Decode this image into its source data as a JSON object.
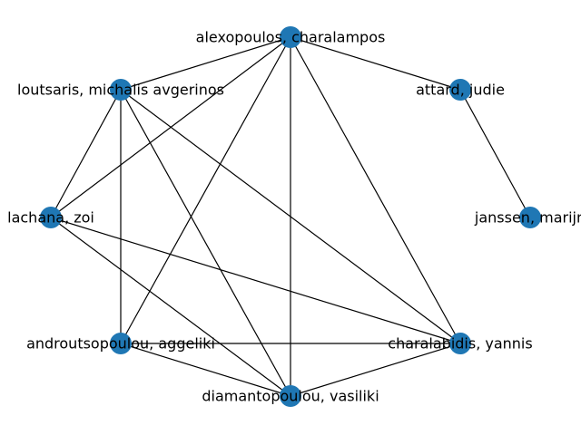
{
  "graph": {
    "node_color": "#1f77b4",
    "edge_color": "#000000",
    "nodes": [
      {
        "id": "alexopoulos",
        "label": "alexopoulos, charalampos"
      },
      {
        "id": "attard",
        "label": "attard, judie"
      },
      {
        "id": "janssen",
        "label": "janssen, marijn"
      },
      {
        "id": "charalabidis",
        "label": "charalabidis, yannis"
      },
      {
        "id": "diamantopoulou",
        "label": "diamantopoulou, vasiliki"
      },
      {
        "id": "androutsopoulou",
        "label": "androutsopoulou, aggeliki"
      },
      {
        "id": "lachana",
        "label": "lachana, zoi"
      },
      {
        "id": "loutsaris",
        "label": "loutsaris, michalis avgerinos"
      }
    ],
    "edges": [
      [
        "alexopoulos",
        "attard"
      ],
      [
        "alexopoulos",
        "loutsaris"
      ],
      [
        "alexopoulos",
        "lachana"
      ],
      [
        "alexopoulos",
        "androutsopoulou"
      ],
      [
        "alexopoulos",
        "diamantopoulou"
      ],
      [
        "alexopoulos",
        "charalabidis"
      ],
      [
        "attard",
        "janssen"
      ],
      [
        "loutsaris",
        "lachana"
      ],
      [
        "loutsaris",
        "androutsopoulou"
      ],
      [
        "loutsaris",
        "diamantopoulou"
      ],
      [
        "loutsaris",
        "charalabidis"
      ],
      [
        "lachana",
        "charalabidis"
      ],
      [
        "lachana",
        "diamantopoulou"
      ],
      [
        "androutsopoulou",
        "charalabidis"
      ],
      [
        "androutsopoulou",
        "diamantopoulou"
      ],
      [
        "diamantopoulou",
        "charalabidis"
      ]
    ]
  }
}
